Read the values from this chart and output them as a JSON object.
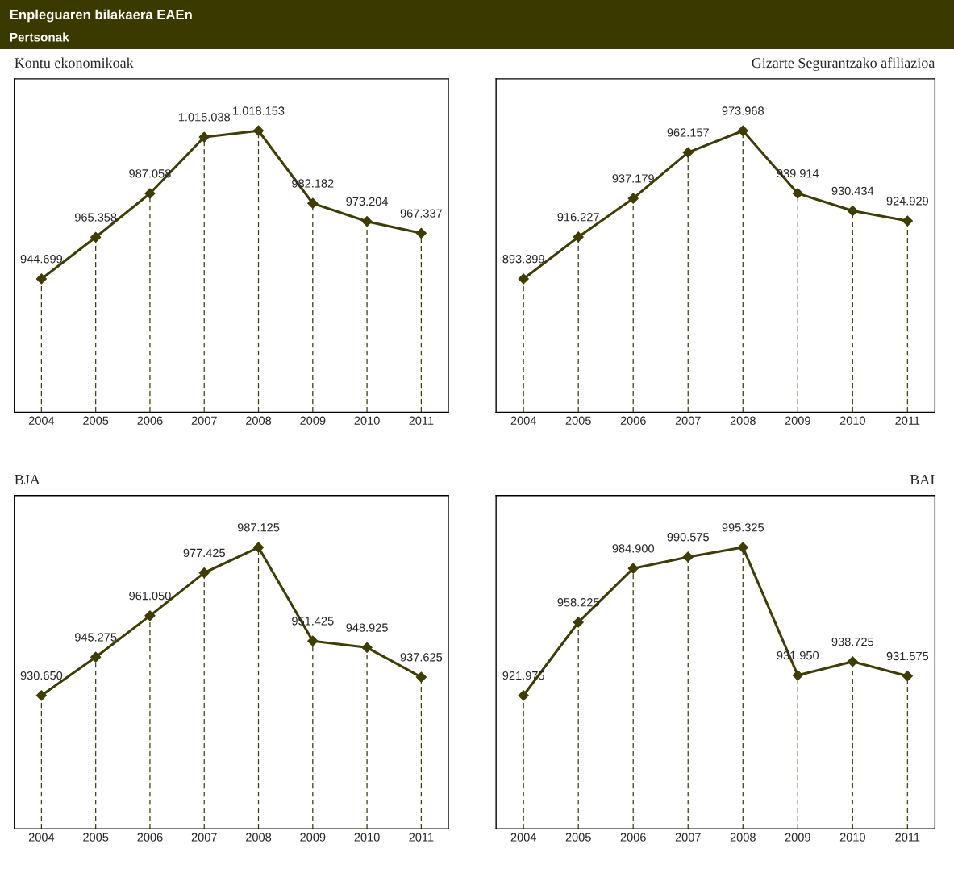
{
  "chart_data": [
    {
      "type": "other",
      "title": "Enpleguaren bilakaera EAEn",
      "subtitle": "Pertsonak",
      "color": "#3a3a00"
    },
    {
      "type": "line",
      "title": "Kontu ekonomikoak",
      "categories": [
        "2004",
        "2005",
        "2006",
        "2007",
        "2008",
        "2009",
        "2010",
        "2011"
      ],
      "series": [
        {
          "color": "#3d3d05",
          "values": [
            944699,
            965358,
            987058,
            1015038,
            1018153,
            982182,
            973204,
            967337
          ],
          "value_labels": [
            "944.699",
            "965.358",
            "987.058",
            "1.015.038",
            "1.018.153",
            "982.182",
            "973.204",
            "967.337"
          ]
        }
      ],
      "marker": "diamond",
      "line_style": "solid",
      "grid": "x",
      "tick_labels": "x",
      "legend": false
    },
    {
      "type": "line",
      "title": "Gizarte Segurantzako afiliazioa",
      "categories": [
        "2004",
        "2005",
        "2006",
        "2007",
        "2008",
        "2009",
        "2010",
        "2011"
      ],
      "series": [
        {
          "color": "#3d3d05",
          "values": [
            893399,
            916227,
            937179,
            962157,
            973968,
            939914,
            930434,
            924929
          ],
          "value_labels": [
            "893.399",
            "916.227",
            "937.179",
            "962.157",
            "973.968",
            "939.914",
            "930.434",
            "924.929"
          ]
        }
      ],
      "marker": "diamond",
      "line_style": "solid",
      "grid": "x",
      "tick_labels": "x",
      "legend": false
    },
    {
      "type": "line",
      "title": "BJA",
      "categories": [
        "2004",
        "2005",
        "2006",
        "2007",
        "2008",
        "2009",
        "2010",
        "2011"
      ],
      "series": [
        {
          "color": "#3d3d05",
          "values": [
            930650,
            945275,
            961050,
            977425,
            987125,
            951425,
            948925,
            937625
          ],
          "value_labels": [
            "930.650",
            "945.275",
            "961.050",
            "977.425",
            "987.125",
            "951.425",
            "948.925",
            "937.625"
          ]
        }
      ],
      "marker": "diamond",
      "line_style": "solid",
      "grid": "x",
      "tick_labels": "x",
      "legend": false
    },
    {
      "type": "line",
      "title": "BAI",
      "categories": [
        "2004",
        "2005",
        "2006",
        "2007",
        "2008",
        "2009",
        "2010",
        "2011"
      ],
      "series": [
        {
          "color": "#3d3d05",
          "values": [
            921975,
            958225,
            984900,
            990575,
            995325,
            931950,
            938725,
            931575
          ],
          "value_labels": [
            "921.975",
            "958.225",
            "984.900",
            "990.575",
            "995.325",
            "931.950",
            "938.725",
            "931.575"
          ]
        }
      ],
      "marker": "diamond",
      "line_style": "solid",
      "grid": "x",
      "tick_labels": "x",
      "legend": false
    }
  ]
}
